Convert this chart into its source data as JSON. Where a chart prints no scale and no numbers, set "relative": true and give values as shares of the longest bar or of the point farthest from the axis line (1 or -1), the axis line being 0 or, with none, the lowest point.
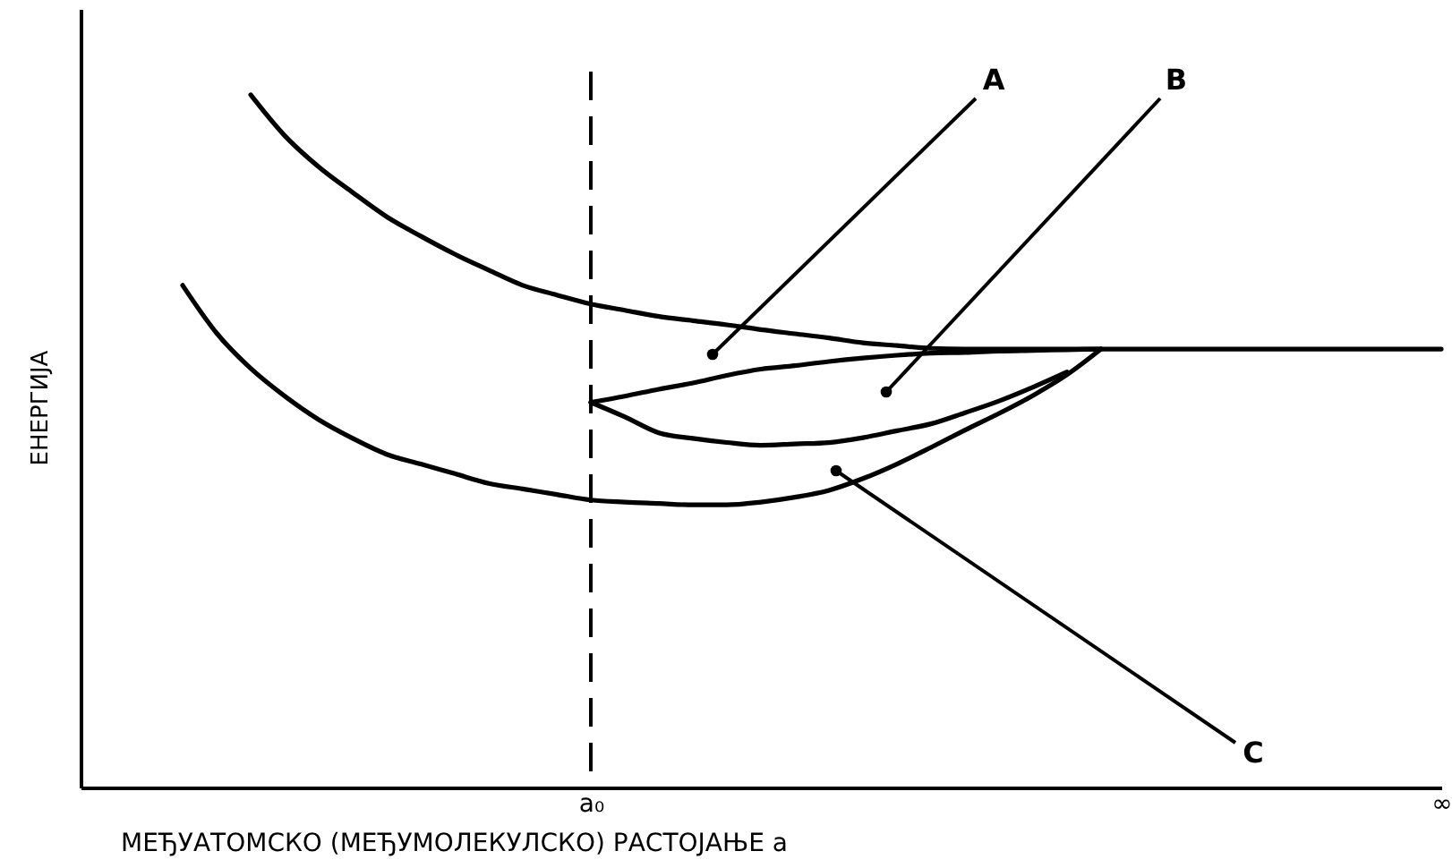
{
  "chart_data": {
    "type": "line",
    "relative": true,
    "xlabel": "МЕЂУАТОМСКО (МЕЂУМОЛЕКУЛСКО) РАСТОЈАЊЕ a",
    "ylabel": "ЕНЕРГИЈА",
    "categories": [
      null,
      null,
      null,
      null,
      null,
      null,
      null,
      null,
      null,
      null,
      null,
      null,
      null,
      null,
      null,
      "a₀",
      null,
      null,
      null,
      null,
      null,
      null,
      null,
      null,
      null,
      null,
      null,
      null,
      null,
      null,
      null,
      null,
      null,
      null,
      null,
      null,
      null,
      null,
      null,
      null,
      "∞"
    ],
    "tick_labels": "x",
    "series": [
      {
        "color": "#000000",
        "values": [
          null,
          null,
          null,
          null,
          null,
          1.0,
          0.941,
          0.896,
          0.859,
          0.824,
          0.796,
          0.77,
          0.747,
          0.725,
          0.711,
          0.698,
          0.689,
          0.68,
          0.674,
          0.668,
          0.661,
          0.655,
          0.649,
          0.642,
          0.638,
          0.634,
          0.633,
          0.633,
          0.633,
          0.633,
          0.633,
          0.633,
          0.633,
          0.633,
          0.633,
          0.633,
          0.633,
          0.633,
          0.633,
          0.633,
          0.633
        ]
      },
      {
        "color": "#000000",
        "values": [
          null,
          null,
          null,
          0.725,
          0.656,
          0.605,
          0.565,
          0.531,
          0.504,
          0.481,
          0.467,
          0.453,
          0.439,
          0.431,
          0.423,
          0.415,
          0.412,
          0.41,
          0.408,
          0.408,
          0.412,
          0.419,
          0.429,
          0.446,
          0.467,
          0.491,
          0.516,
          0.54,
          0.566,
          0.596,
          0.633,
          null,
          null,
          null,
          null,
          null,
          null,
          null,
          null,
          null,
          null
        ]
      },
      {
        "color": "#000000",
        "values": [
          null,
          null,
          null,
          null,
          null,
          null,
          null,
          null,
          null,
          null,
          null,
          null,
          null,
          null,
          null,
          0.556,
          0.565,
          0.575,
          0.584,
          0.595,
          0.604,
          0.609,
          0.615,
          0.62,
          0.624,
          0.627,
          0.628,
          0.63,
          0.631,
          0.632,
          0.633,
          null,
          null,
          null,
          null,
          null,
          null,
          null,
          null,
          null,
          null
        ]
      },
      {
        "color": "#000000",
        "values": [
          null,
          null,
          null,
          null,
          null,
          null,
          null,
          null,
          null,
          null,
          null,
          null,
          null,
          null,
          null,
          0.556,
          0.535,
          0.512,
          0.504,
          0.498,
          0.494,
          0.496,
          0.498,
          0.505,
          0.515,
          0.525,
          0.541,
          0.558,
          0.578,
          0.6,
          null,
          null,
          null,
          null,
          null,
          null,
          null,
          null,
          null,
          null,
          null
        ]
      }
    ],
    "ref_lines": [
      {
        "axis": "x",
        "value": "a₀",
        "color": "#000000",
        "line_style": "dashed"
      }
    ],
    "annotations": [
      "A",
      "B",
      "C"
    ]
  }
}
